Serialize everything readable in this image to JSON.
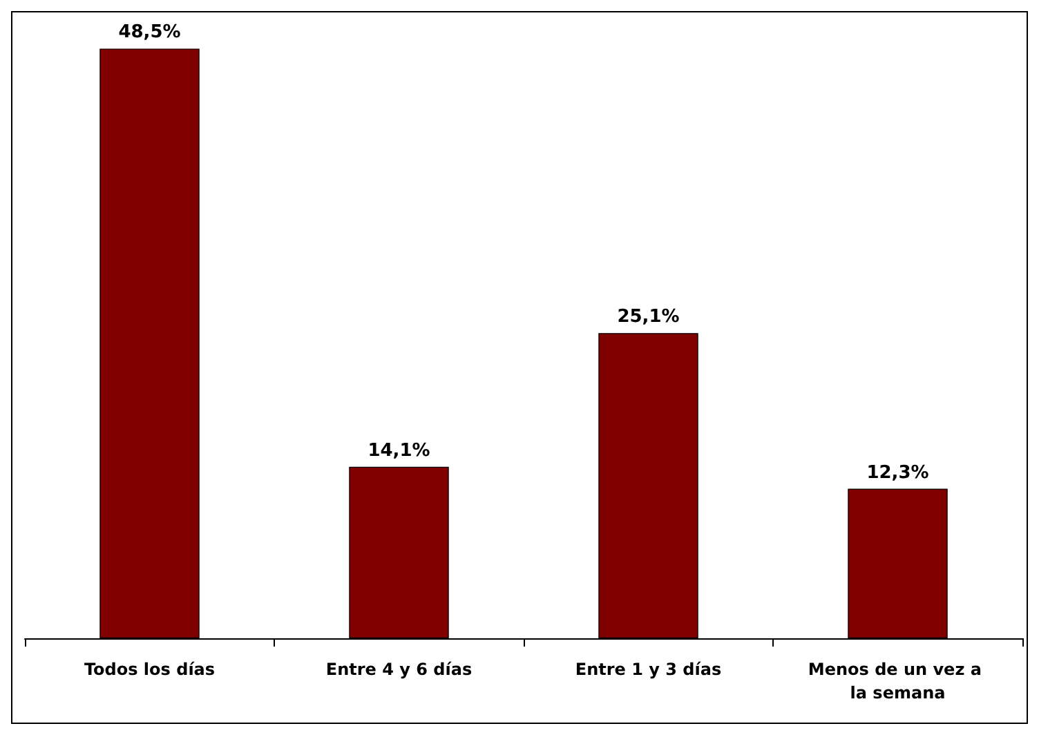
{
  "chart_data": {
    "type": "bar",
    "categories": [
      "Todos los días",
      "Entre 4 y 6 días",
      "Entre 1 y 3 días",
      "Menos de un vez a la semana"
    ],
    "values": [
      48.5,
      14.1,
      25.1,
      12.3
    ],
    "value_labels": [
      "48,5%",
      "14,1%",
      "25,1%",
      "12,3%"
    ],
    "color": "#800000",
    "grid": false
  }
}
